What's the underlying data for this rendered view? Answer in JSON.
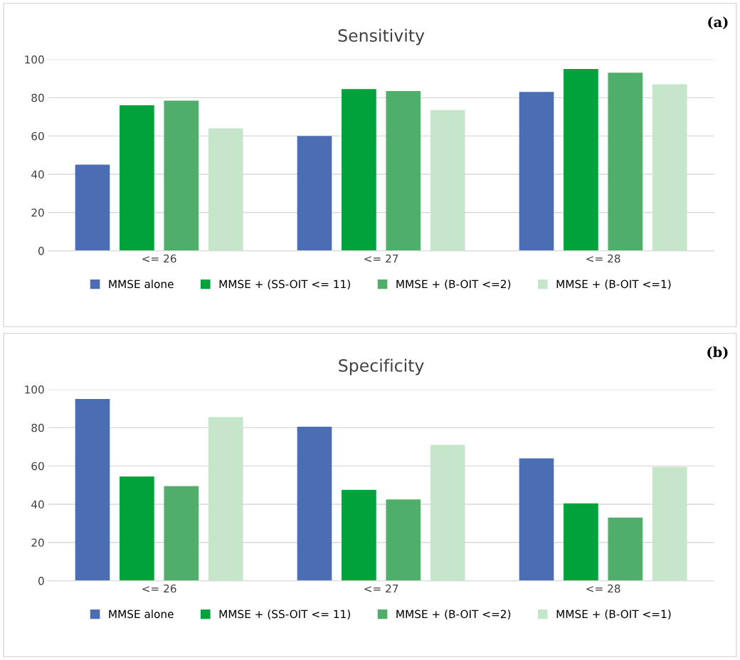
{
  "chart_data": [
    {
      "type": "bar",
      "title": "Sensitivity",
      "annotations": [
        "(a)"
      ],
      "categories": [
        "<= 26",
        "<= 27",
        "<= 28"
      ],
      "ylim": [
        0,
        100
      ],
      "yticks": [
        0,
        20,
        40,
        60,
        80,
        100
      ],
      "grid": "y",
      "legend": "bottom",
      "series": [
        {
          "name": "MMSE alone",
          "color": "#4a6db3",
          "values": [
            45,
            60,
            83
          ]
        },
        {
          "name": "MMSE + (SS-OIT <= 11)",
          "color": "#00a23c",
          "values": [
            76,
            84.5,
            95
          ]
        },
        {
          "name": "MMSE + (B-OIT <=2)",
          "color": "#4fae6a",
          "values": [
            78.5,
            83.5,
            93
          ]
        },
        {
          "name": "MMSE + (B-OIT <=1)",
          "color": "#c6e6cc",
          "values": [
            64,
            73.5,
            87
          ]
        }
      ]
    },
    {
      "type": "bar",
      "title": "Specificity",
      "annotations": [
        "(b)"
      ],
      "categories": [
        "<= 26",
        "<= 27",
        "<= 28"
      ],
      "ylim": [
        0,
        100
      ],
      "yticks": [
        0,
        20,
        40,
        60,
        80,
        100
      ],
      "grid": "y",
      "legend": "bottom",
      "series": [
        {
          "name": "MMSE alone",
          "color": "#4a6db3",
          "values": [
            95,
            80.5,
            64
          ]
        },
        {
          "name": "MMSE + (SS-OIT <= 11)",
          "color": "#00a23c",
          "values": [
            54.5,
            47.5,
            40.5
          ]
        },
        {
          "name": "MMSE + (B-OIT <=2)",
          "color": "#4fae6a",
          "values": [
            49.5,
            42.5,
            33
          ]
        },
        {
          "name": "MMSE + (B-OIT <=1)",
          "color": "#c6e6cc",
          "values": [
            85.5,
            71,
            59.5
          ]
        }
      ]
    }
  ]
}
